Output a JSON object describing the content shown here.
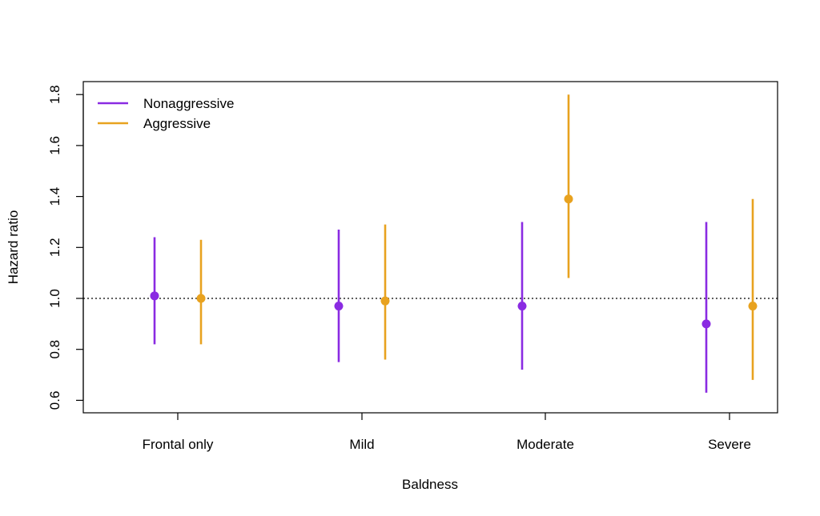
{
  "chart_data": {
    "type": "errorbar",
    "title": "",
    "xlabel": "Baldness",
    "ylabel": "Hazard ratio",
    "categories": [
      "Frontal only",
      "Mild",
      "Moderate",
      "Severe"
    ],
    "ylim": [
      0.55,
      1.85
    ],
    "yticks": [
      "0.6",
      "0.8",
      "1.0",
      "1.2",
      "1.4",
      "1.6",
      "1.8"
    ],
    "reference_line": 1.0,
    "grid": false,
    "legend_position": "top-left",
    "series": [
      {
        "name": "Nonaggressive",
        "color": "#8a2be2",
        "points": [
          {
            "category": "Frontal only",
            "estimate": 1.01,
            "lower": 0.82,
            "upper": 1.24
          },
          {
            "category": "Mild",
            "estimate": 0.97,
            "lower": 0.75,
            "upper": 1.27
          },
          {
            "category": "Moderate",
            "estimate": 0.97,
            "lower": 0.72,
            "upper": 1.3
          },
          {
            "category": "Severe",
            "estimate": 0.9,
            "lower": 0.63,
            "upper": 1.3
          }
        ]
      },
      {
        "name": "Aggressive",
        "color": "#e8a21f",
        "points": [
          {
            "category": "Frontal only",
            "estimate": 1.0,
            "lower": 0.82,
            "upper": 1.23
          },
          {
            "category": "Mild",
            "estimate": 0.99,
            "lower": 0.76,
            "upper": 1.29
          },
          {
            "category": "Moderate",
            "estimate": 1.39,
            "lower": 1.08,
            "upper": 1.8
          },
          {
            "category": "Severe",
            "estimate": 0.97,
            "lower": 0.68,
            "upper": 1.39
          }
        ]
      }
    ]
  }
}
